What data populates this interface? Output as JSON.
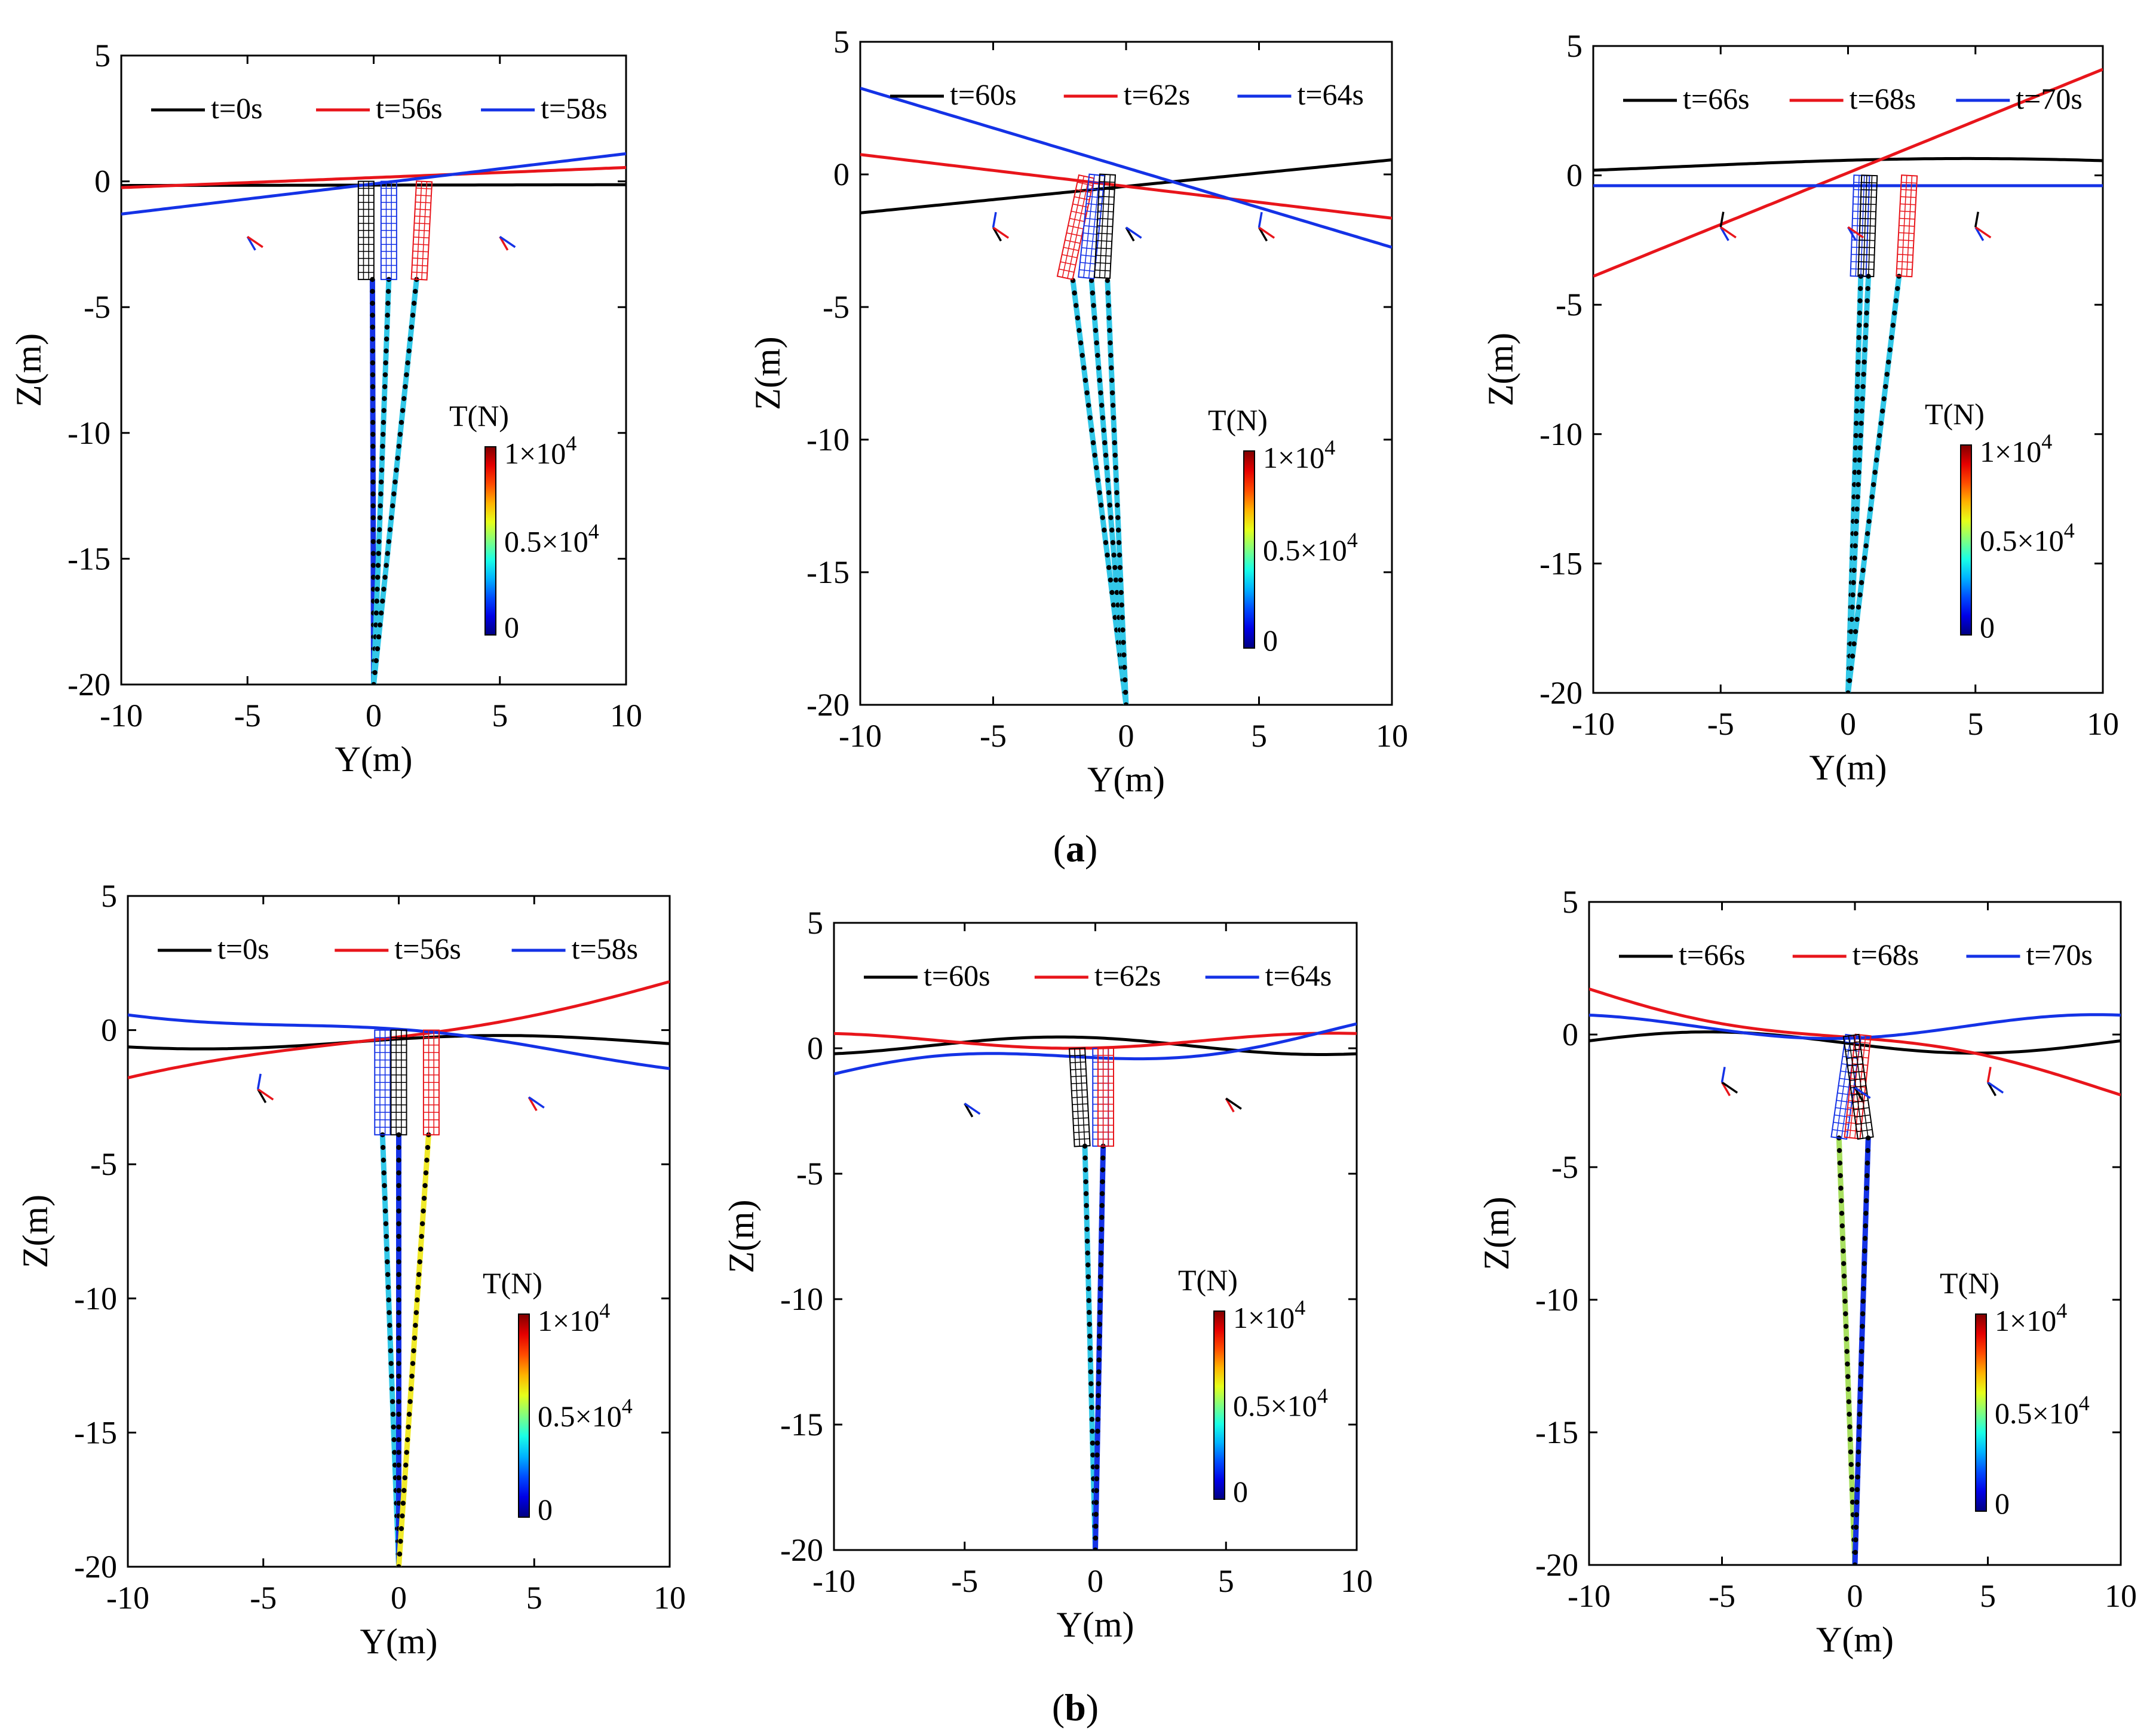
{
  "colors": {
    "black": "#000000",
    "red": "#e8151b",
    "blue": "#1432e6",
    "cable_cyan": "#33c8e8",
    "cable_yellow": "#f0ea2a",
    "cable_lightgreen": "#a8e060",
    "node": "#000000"
  },
  "panel_labels": [
    {
      "prefix": "(",
      "letter": "a",
      "suffix": ")"
    },
    {
      "prefix": "(",
      "letter": "b",
      "suffix": ")"
    }
  ],
  "colorbar": {
    "title": "T(N)",
    "max_label": "1×10",
    "max_exp": "4",
    "mid_label": "0.5×10",
    "mid_exp": "4",
    "min_label": "0",
    "range": [
      0,
      10000
    ],
    "colormap": "jet"
  },
  "chart_data": [
    {
      "type": "line",
      "panel": "a",
      "index": 1,
      "xlabel": "Y(m)",
      "ylabel": "Z(m)",
      "xlim": [
        -10,
        10
      ],
      "ylim": [
        -20,
        5
      ],
      "xticks": [
        -10,
        -5,
        0,
        5,
        10
      ],
      "yticks": [
        5,
        0,
        -5,
        -10,
        -15,
        -20
      ],
      "legend": [
        "t=0s",
        "t=56s",
        "t=58s"
      ],
      "surface": [
        {
          "name": "t=0s",
          "color": "black",
          "amp": 0.05,
          "wavelength": 200,
          "phase": 0,
          "offset": -0.15,
          "tilt": 0.0
        },
        {
          "name": "t=56s",
          "color": "red",
          "amp": 0.0,
          "wavelength": 200,
          "phase": 0,
          "offset": 0.15,
          "tilt": 0.004
        },
        {
          "name": "t=58s",
          "color": "blue",
          "amp": 0.0,
          "wavelength": 200,
          "phase": 0,
          "offset": -0.1,
          "tilt": 0.012
        }
      ],
      "buoys": [
        {
          "color": "black",
          "cx": -0.3,
          "angle": 0
        },
        {
          "color": "blue",
          "cx": 0.6,
          "angle": 0
        },
        {
          "color": "red",
          "cx": 1.8,
          "angle": 3
        }
      ],
      "cables": [
        {
          "top": [
            -0.05,
            -3.9
          ],
          "bottom": [
            0,
            -20
          ],
          "color": "blue"
        },
        {
          "top": [
            0.6,
            -3.9
          ],
          "bottom": [
            0,
            -20
          ],
          "color": "cable_cyan"
        },
        {
          "top": [
            1.7,
            -3.9
          ],
          "bottom": [
            0,
            -20
          ],
          "color": "cable_cyan"
        }
      ],
      "markers": [
        {
          "x": -5,
          "z": -2.2,
          "colors": [
            "blue",
            "red"
          ]
        },
        {
          "x": 5,
          "z": -2.2,
          "colors": [
            "red",
            "blue"
          ]
        }
      ]
    },
    {
      "type": "line",
      "panel": "a",
      "index": 2,
      "xlabel": "Y(m)",
      "ylabel": "Z(m)",
      "xlim": [
        -10,
        10
      ],
      "ylim": [
        -20,
        5
      ],
      "xticks": [
        -10,
        -5,
        0,
        5,
        10
      ],
      "yticks": [
        5,
        0,
        -5,
        -10,
        -15,
        -20
      ],
      "legend": [
        "t=60s",
        "t=62s",
        "t=64s"
      ],
      "surface": [
        {
          "name": "t=60s",
          "color": "black",
          "amp": 0.0,
          "wavelength": 200,
          "phase": 0,
          "offset": -0.45,
          "tilt": 0.01
        },
        {
          "name": "t=62s",
          "color": "red",
          "amp": 0.0,
          "wavelength": 200,
          "phase": 0,
          "offset": -0.45,
          "tilt": -0.012
        },
        {
          "name": "t=64s",
          "color": "blue",
          "amp": 0.0,
          "wavelength": 200,
          "phase": 0,
          "offset": 0.25,
          "tilt": -0.03
        }
      ],
      "buoys": [
        {
          "color": "red",
          "cx": -2.3,
          "angle": 12
        },
        {
          "color": "blue",
          "cx": -1.5,
          "angle": 6
        },
        {
          "color": "black",
          "cx": -0.9,
          "angle": 3
        }
      ],
      "cables": [
        {
          "top": [
            -2.0,
            -4.0
          ],
          "bottom": [
            0,
            -20
          ],
          "color": "cable_cyan"
        },
        {
          "top": [
            -1.3,
            -4.0
          ],
          "bottom": [
            0,
            -20
          ],
          "color": "cable_cyan"
        },
        {
          "top": [
            -0.7,
            -4.0
          ],
          "bottom": [
            0,
            -20
          ],
          "color": "cable_cyan"
        }
      ],
      "markers": [
        {
          "x": -5,
          "z": -2.0,
          "colors": [
            "black",
            "red",
            "blue"
          ]
        },
        {
          "x": 0,
          "z": -2.0,
          "colors": [
            "black",
            "blue"
          ]
        },
        {
          "x": 5,
          "z": -2.0,
          "colors": [
            "black",
            "red",
            "blue"
          ]
        }
      ]
    },
    {
      "type": "line",
      "panel": "a",
      "index": 3,
      "xlabel": "Y(m)",
      "ylabel": "Z(m)",
      "xlim": [
        -10,
        10
      ],
      "ylim": [
        -20,
        5
      ],
      "xticks": [
        -10,
        -5,
        0,
        5,
        10
      ],
      "yticks": [
        5,
        0,
        -5,
        -10,
        -15,
        -20
      ],
      "legend": [
        "t=66s",
        "t=68s",
        "t=70s"
      ],
      "surface": [
        {
          "name": "t=66s",
          "color": "black",
          "amp": 0.3,
          "wavelength": 44,
          "phase": 0.9,
          "offset": 0.35,
          "tilt": 0.0
        },
        {
          "name": "t=68s",
          "color": "red",
          "amp": 0.0,
          "wavelength": 200,
          "phase": 0,
          "offset": 0.1,
          "tilt": 0.04
        },
        {
          "name": "t=70s",
          "color": "blue",
          "amp": 0.0,
          "wavelength": 200,
          "phase": 0,
          "offset": -0.4,
          "tilt": 0.0
        }
      ],
      "buoys": [
        {
          "color": "blue",
          "cx": 0.4,
          "angle": 2
        },
        {
          "color": "black",
          "cx": 0.7,
          "angle": 2
        },
        {
          "color": "red",
          "cx": 2.2,
          "angle": 3
        }
      ],
      "cables": [
        {
          "top": [
            0.5,
            -3.9
          ],
          "bottom": [
            0,
            -20
          ],
          "color": "cable_cyan"
        },
        {
          "top": [
            0.8,
            -3.9
          ],
          "bottom": [
            0,
            -20
          ],
          "color": "cable_cyan"
        },
        {
          "top": [
            2.0,
            -3.9
          ],
          "bottom": [
            0,
            -20
          ],
          "color": "cable_cyan"
        }
      ],
      "markers": [
        {
          "x": -5,
          "z": -2.0,
          "colors": [
            "blue",
            "red",
            "black"
          ]
        },
        {
          "x": 0,
          "z": -2.0,
          "colors": [
            "blue",
            "red"
          ]
        },
        {
          "x": 5,
          "z": -2.0,
          "colors": [
            "blue",
            "red",
            "black"
          ]
        }
      ]
    },
    {
      "type": "line",
      "panel": "b",
      "index": 1,
      "xlabel": "Y(m)",
      "ylabel": "Z(m)",
      "xlim": [
        -10,
        10
      ],
      "ylim": [
        -20,
        5
      ],
      "xticks": [
        -10,
        -5,
        0,
        5,
        10
      ],
      "yticks": [
        5,
        0,
        -5,
        -10,
        -15,
        -20
      ],
      "legend": [
        "t=0s",
        "t=56s",
        "t=58s"
      ],
      "surface": [
        {
          "name": "t=0s",
          "color": "black",
          "amp": 0.25,
          "wavelength": 22,
          "phase": 0.5,
          "offset": -0.45,
          "tilt": 0.0
        },
        {
          "name": "t=56s",
          "color": "red",
          "amp": 0.35,
          "wavelength": 26,
          "phase": 3.6,
          "offset": -0.1,
          "tilt": 0.02
        },
        {
          "name": "t=58s",
          "color": "blue",
          "amp": 0.25,
          "wavelength": 20,
          "phase": 1.2,
          "offset": -0.2,
          "tilt": -0.01
        }
      ],
      "buoys": [
        {
          "color": "blue",
          "cx": -0.6,
          "angle": 0
        },
        {
          "color": "black",
          "cx": 0.0,
          "angle": 0
        },
        {
          "color": "red",
          "cx": 1.2,
          "angle": 0
        }
      ],
      "cables": [
        {
          "top": [
            -0.6,
            -3.9
          ],
          "bottom": [
            0,
            -20
          ],
          "color": "cable_cyan"
        },
        {
          "top": [
            0.0,
            -3.9
          ],
          "bottom": [
            0,
            -20
          ],
          "color": "blue"
        },
        {
          "top": [
            1.1,
            -3.9
          ],
          "bottom": [
            0,
            -20
          ],
          "color": "cable_yellow"
        }
      ],
      "markers": [
        {
          "x": -5.2,
          "z": -2.2,
          "colors": [
            "black",
            "red",
            "blue"
          ]
        },
        {
          "x": 4.8,
          "z": -2.5,
          "colors": [
            "red",
            "blue"
          ]
        }
      ]
    },
    {
      "type": "line",
      "panel": "b",
      "index": 2,
      "xlabel": "Y(m)",
      "ylabel": "Z(m)",
      "xlim": [
        -10,
        10
      ],
      "ylim": [
        -20,
        5
      ],
      "xticks": [
        -10,
        -5,
        0,
        5,
        10
      ],
      "yticks": [
        5,
        0,
        -5,
        -10,
        -15,
        -20
      ],
      "legend": [
        "t=60s",
        "t=62s",
        "t=64s"
      ],
      "surface": [
        {
          "name": "t=60s",
          "color": "black",
          "amp": 0.35,
          "wavelength": 20,
          "phase": 2.0,
          "offset": 0.1,
          "tilt": 0.0
        },
        {
          "name": "t=62s",
          "color": "red",
          "amp": 0.3,
          "wavelength": 20,
          "phase": 5.0,
          "offset": 0.3,
          "tilt": 0.0
        },
        {
          "name": "t=64s",
          "color": "blue",
          "amp": 0.5,
          "wavelength": 20,
          "phase": 3.5,
          "offset": -0.2,
          "tilt": 0.01
        }
      ],
      "buoys": [
        {
          "color": "black",
          "cx": -0.5,
          "angle": -3
        },
        {
          "color": "blue",
          "cx": 0.2,
          "angle": 0
        },
        {
          "color": "red",
          "cx": 0.4,
          "angle": 0
        }
      ],
      "cables": [
        {
          "top": [
            -0.4,
            -3.9
          ],
          "bottom": [
            0,
            -20
          ],
          "color": "cable_cyan"
        },
        {
          "top": [
            0.3,
            -3.9
          ],
          "bottom": [
            0,
            -20
          ],
          "color": "blue"
        }
      ],
      "markers": [
        {
          "x": -5,
          "z": -2.2,
          "colors": [
            "black",
            "blue"
          ]
        },
        {
          "x": 5,
          "z": -2.0,
          "colors": [
            "red",
            "black"
          ]
        }
      ]
    },
    {
      "type": "line",
      "panel": "b",
      "index": 3,
      "xlabel": "Y(m)",
      "ylabel": "Z(m)",
      "xlim": [
        -10,
        10
      ],
      "ylim": [
        -20,
        5
      ],
      "xticks": [
        -10,
        -5,
        0,
        5,
        10
      ],
      "yticks": [
        5,
        0,
        -5,
        -10,
        -15,
        -20
      ],
      "legend": [
        "t=66s",
        "t=68s",
        "t=70s"
      ],
      "surface": [
        {
          "name": "t=66s",
          "color": "black",
          "amp": 0.4,
          "wavelength": 20,
          "phase": 3.3,
          "offset": -0.3,
          "tilt": 0.0
        },
        {
          "name": "t=68s",
          "color": "red",
          "amp": 0.4,
          "wavelength": 20,
          "phase": 0.2,
          "offset": -0.2,
          "tilt": -0.02
        },
        {
          "name": "t=70s",
          "color": "blue",
          "amp": 0.45,
          "wavelength": 20,
          "phase": 5.0,
          "offset": 0.3,
          "tilt": 0.0
        }
      ],
      "buoys": [
        {
          "color": "blue",
          "cx": -0.6,
          "angle": 8
        },
        {
          "color": "red",
          "cx": -0.1,
          "angle": 6
        },
        {
          "color": "black",
          "cx": 0.4,
          "angle": -8
        }
      ],
      "cables": [
        {
          "top": [
            -0.6,
            -3.9
          ],
          "bottom": [
            0,
            -20
          ],
          "color": "cable_lightgreen"
        },
        {
          "top": [
            0.5,
            -3.9
          ],
          "bottom": [
            0,
            -20
          ],
          "color": "blue"
        }
      ],
      "markers": [
        {
          "x": -5,
          "z": -1.8,
          "colors": [
            "red",
            "black",
            "blue"
          ]
        },
        {
          "x": 0,
          "z": -2.0,
          "colors": [
            "black",
            "blue"
          ]
        },
        {
          "x": 5,
          "z": -1.8,
          "colors": [
            "black",
            "blue",
            "red"
          ]
        }
      ]
    }
  ]
}
